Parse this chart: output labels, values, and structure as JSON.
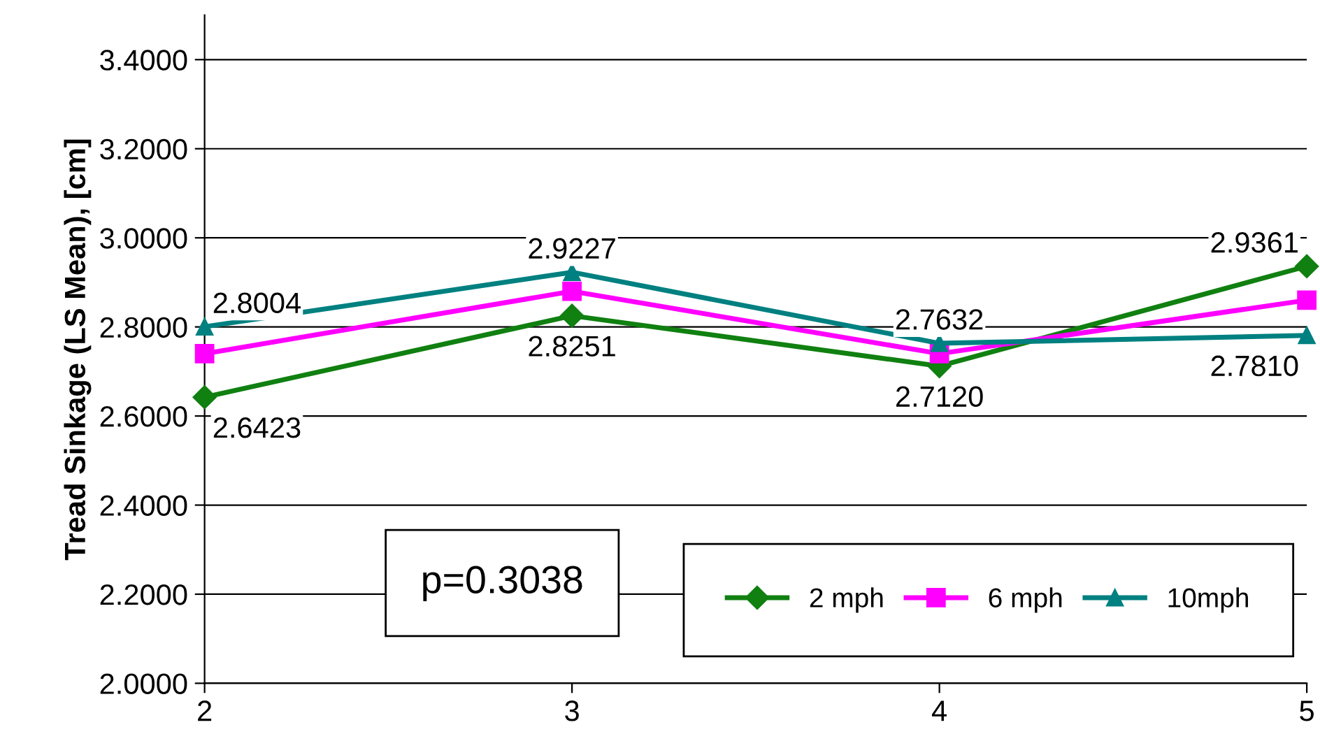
{
  "chart_data": {
    "type": "line",
    "ylabel": "Tread Sinkage (LS Mean), [cm]",
    "x": [
      2,
      3,
      4,
      5
    ],
    "xlim": [
      2,
      5
    ],
    "xticks": [
      2,
      3,
      4,
      5
    ],
    "ylim": [
      2.0,
      3.5
    ],
    "yticks": [
      {
        "value": 2.0,
        "label": "2.0000"
      },
      {
        "value": 2.2,
        "label": "2.2000"
      },
      {
        "value": 2.4,
        "label": "2.4000"
      },
      {
        "value": 2.6,
        "label": "2.6000"
      },
      {
        "value": 2.8,
        "label": "2.8000"
      },
      {
        "value": 3.0,
        "label": "3.0000"
      },
      {
        "value": 3.2,
        "label": "3.2000"
      },
      {
        "value": 3.4,
        "label": "3.4000"
      }
    ],
    "grid": "y",
    "legend": "bottom right",
    "line_style": "solid",
    "series": [
      {
        "name": "2 mph",
        "color": "#108010",
        "marker": "diamond",
        "values": [
          2.6423,
          2.8251,
          2.712,
          2.9361
        ],
        "value_labels": [
          "2.6423",
          "2.8251",
          "2.7120",
          "2.9361"
        ]
      },
      {
        "name": "6 mph",
        "color": "#ff00ff",
        "marker": "square",
        "values": [
          2.74,
          2.88,
          2.74,
          2.86
        ]
      },
      {
        "name": "10mph",
        "color": "#008080",
        "marker": "triangle",
        "values": [
          2.8004,
          2.9227,
          2.7632,
          2.781
        ],
        "value_labels": [
          "2.8004",
          "2.9227",
          "2.7632",
          "2.7810"
        ]
      }
    ],
    "annotations": [
      "p=0.3038"
    ]
  }
}
